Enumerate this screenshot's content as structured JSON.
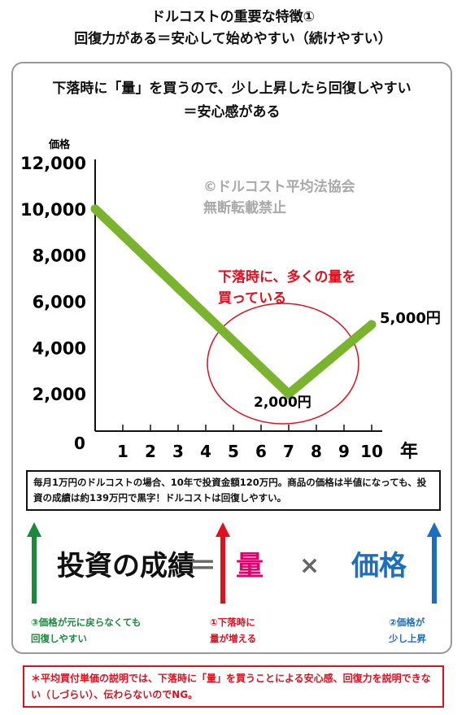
{
  "header": {
    "title_line1": "ドルコストの重要な特徴①",
    "title_line2": "回復力がある＝安心して始めやすい（続けやすい）"
  },
  "panel": {
    "subtitle_line1": "下落時に「量」を買うので、少し上昇したら回復しやすい",
    "subtitle_line2": "＝安心感がある"
  },
  "chart_data": {
    "type": "line",
    "ylabel": "価格",
    "xlabel": "年",
    "x_ticks": [
      "1",
      "2",
      "3",
      "4",
      "5",
      "6",
      "7",
      "8",
      "9",
      "10"
    ],
    "y_ticks": [
      "12,000",
      "10,000",
      "8,000",
      "6,000",
      "4,000",
      "2,000"
    ],
    "origin_label": "0",
    "xlim": [
      0,
      11
    ],
    "ylim": [
      0,
      12000
    ],
    "series": [
      {
        "x": [
          0,
          7,
          10
        ],
        "values": [
          10000,
          2000,
          5000
        ],
        "color": "#7ab32e"
      }
    ],
    "watermark_line1": "©ドルコスト平均法協会",
    "watermark_line2": "無断転載禁止",
    "annotation_line1": "下落時に、多くの量を",
    "annotation_line2": "買っている",
    "annotation_color": "#e0101e",
    "label_low": "2,000円",
    "label_end": "5,000円"
  },
  "note": {
    "text": "毎月1万円のドルコストの場合、10年で投資金額120万円。商品の価格は半値になっても、投資の成績は約139万円で黒字！ドルコストは回復しやすい。"
  },
  "equation": {
    "left": "投資の成績",
    "equal": "＝",
    "qty": "量",
    "times": "×",
    "price": "価格"
  },
  "captions": {
    "green_line1": "③価格が元に戻らなくても",
    "green_line2": "回復しやすい",
    "red_line1": "①下落時に",
    "red_line2": "量が増える",
    "blue_line1": "②価格が",
    "blue_line2": "少し上昇"
  },
  "colors": {
    "green": "#1a8a3c",
    "red": "#e0101e",
    "blue": "#1a6fc0",
    "magenta": "#e4006e"
  },
  "footer": {
    "text": "＊平均買付単価の説明では、下落時に「量」を買うことによる安心感、回復力を説明できない（しづらい）、伝わらないのでNG。"
  }
}
